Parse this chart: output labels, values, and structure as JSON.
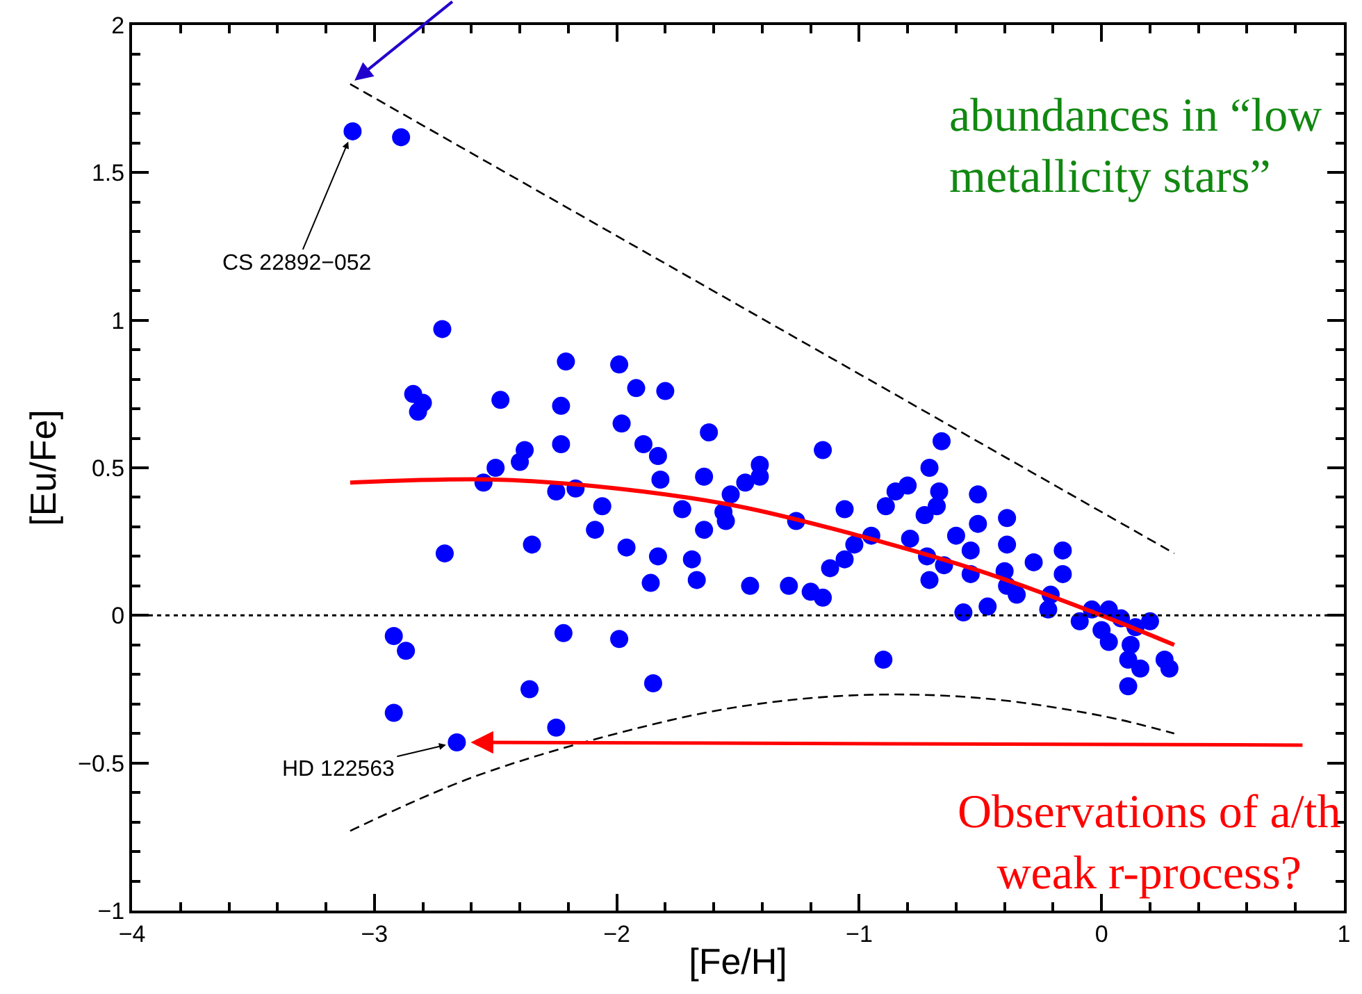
{
  "chart_data": {
    "type": "scatter",
    "xlabel": "[Fe/H]",
    "ylabel": "[Eu/Fe]",
    "xlim": [
      -4,
      1
    ],
    "ylim": [
      -1,
      2
    ],
    "xticks": [
      {
        "value": -4,
        "label": "−4"
      },
      {
        "value": -3,
        "label": "−3"
      },
      {
        "value": -2,
        "label": "−2"
      },
      {
        "value": -1,
        "label": "−1"
      },
      0,
      1
    ],
    "yticks": [
      {
        "value": -1,
        "label": "−1"
      },
      {
        "value": -0.5,
        "label": "−0.5"
      },
      0,
      0.5,
      1,
      1.5,
      2
    ],
    "legend": false,
    "series": [
      {
        "color": "#0000ff",
        "marker": "circle",
        "x": [
          -3.09,
          -2.89,
          -2.72,
          -2.21,
          -1.99,
          -2.84,
          -2.8,
          -2.82,
          -2.48,
          -2.23,
          -1.92,
          -1.8,
          -1.98,
          -2.23,
          -1.62,
          -1.89,
          -1.83,
          -2.38,
          -2.4,
          -2.5,
          -2.55,
          -2.25,
          -2.17,
          -1.82,
          -1.64,
          -1.41,
          -1.47,
          -1.41,
          -1.53,
          -2.06,
          -1.73,
          -1.56,
          -1.55,
          -2.09,
          -1.64,
          -2.71,
          -2.35,
          -1.96,
          -1.83,
          -1.69,
          -1.86,
          -1.67,
          -1.45,
          -2.92,
          -2.87,
          -2.22,
          -1.99,
          -2.36,
          -1.85,
          -2.92,
          -2.25,
          -2.66,
          -1.15,
          -0.66,
          -0.71,
          -0.8,
          -0.85,
          -0.89,
          -0.67,
          -0.68,
          -0.73,
          -0.51,
          -0.39,
          -0.51,
          -1.06,
          -1.26,
          -0.95,
          -1.02,
          -0.6,
          -0.54,
          -0.39,
          -0.79,
          -0.72,
          -0.65,
          -1.06,
          -1.12,
          -0.71,
          -0.54,
          -0.16,
          -0.28,
          -0.16,
          -0.4,
          -0.39,
          -0.35,
          -1.29,
          -1.2,
          -1.15,
          -0.57,
          -0.47,
          -0.22,
          -0.09,
          0.03,
          0.08,
          0.0,
          0.14,
          0.2,
          0.03,
          0.12,
          0.11,
          0.16,
          0.11,
          0.26,
          0.28,
          -0.9,
          -0.04,
          -0.21
        ],
        "values": [
          1.64,
          1.62,
          0.97,
          0.86,
          0.85,
          0.75,
          0.72,
          0.69,
          0.73,
          0.71,
          0.77,
          0.76,
          0.65,
          0.58,
          0.62,
          0.58,
          0.54,
          0.56,
          0.52,
          0.5,
          0.45,
          0.42,
          0.43,
          0.46,
          0.47,
          0.51,
          0.45,
          0.47,
          0.41,
          0.37,
          0.36,
          0.35,
          0.32,
          0.29,
          0.29,
          0.21,
          0.24,
          0.23,
          0.2,
          0.19,
          0.11,
          0.12,
          0.1,
          -0.07,
          -0.12,
          -0.06,
          -0.08,
          -0.25,
          -0.23,
          -0.33,
          -0.38,
          -0.43,
          0.56,
          0.59,
          0.5,
          0.44,
          0.42,
          0.37,
          0.42,
          0.37,
          0.34,
          0.41,
          0.33,
          0.31,
          0.36,
          0.32,
          0.27,
          0.24,
          0.27,
          0.22,
          0.24,
          0.26,
          0.2,
          0.17,
          0.19,
          0.16,
          0.12,
          0.14,
          0.22,
          0.18,
          0.14,
          0.15,
          0.1,
          0.07,
          0.1,
          0.08,
          0.06,
          0.01,
          0.03,
          0.02,
          -0.02,
          0.02,
          -0.01,
          -0.05,
          -0.04,
          -0.02,
          -0.09,
          -0.1,
          -0.15,
          -0.18,
          -0.24,
          -0.15,
          -0.18,
          -0.15,
          0.02,
          0.07
        ]
      },
      {
        "type": "line",
        "color": "#ff0000",
        "line_style": "solid",
        "x": [
          -3.1,
          -2.5,
          -2.0,
          -1.5,
          -1.0,
          -0.5,
          0.0,
          0.3
        ],
        "values": [
          0.45,
          0.46,
          0.43,
          0.37,
          0.27,
          0.15,
          0.0,
          -0.1
        ]
      },
      {
        "type": "line",
        "color": "#000000",
        "line_style": "dashed",
        "x": [
          -3.1,
          0.3
        ],
        "values": [
          1.8,
          0.21
        ]
      },
      {
        "type": "line",
        "color": "#000000",
        "line_style": "dashed",
        "x": [
          -3.1,
          -2.6,
          -2.0,
          -1.5,
          -1.0,
          -0.5,
          0.0,
          0.3
        ],
        "values": [
          -0.73,
          -0.55,
          -0.4,
          -0.31,
          -0.27,
          -0.28,
          -0.34,
          -0.4
        ]
      }
    ],
    "ref_lines": [
      {
        "axis": "y",
        "value": 0,
        "color": "#000000",
        "line_style": "dotted"
      }
    ],
    "annotations": [
      {
        "text": "CS 22892−052",
        "x": -3.09,
        "y": 1.64
      },
      {
        "text": "HD 122563",
        "x": -2.66,
        "y": -0.43
      },
      "abundances in “low\nmetallicity stars”",
      "Observations of a/th\nweak r-process?"
    ]
  }
}
